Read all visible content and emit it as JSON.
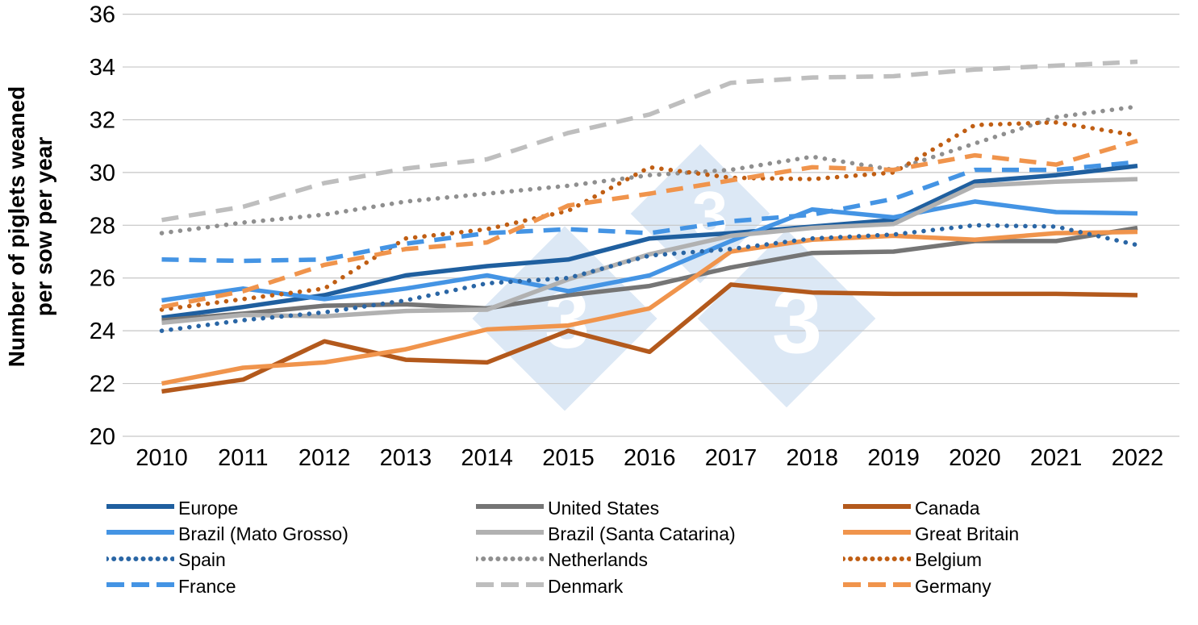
{
  "y_axis": {
    "title_line1": "Number of piglets weaned",
    "title_line2": "per sow per year",
    "tick_labels": [
      "36",
      "34",
      "32",
      "30",
      "28",
      "26",
      "24",
      "22",
      "20"
    ]
  },
  "x_axis": {
    "tick_labels": [
      "2010",
      "2011",
      "2012",
      "2013",
      "2014",
      "2015",
      "2016",
      "2017",
      "2018",
      "2019",
      "2020",
      "2021",
      "2022"
    ]
  },
  "watermark": {
    "digit": "3",
    "diamond_color": "#DCE8F5",
    "digit_color": "#FFFFFF"
  },
  "chart_data": {
    "type": "line",
    "title": "",
    "xlabel": "",
    "ylabel": "Number of piglets weaned per sow per year",
    "ylim": [
      20,
      36
    ],
    "y_tick_step": 2,
    "grid": "horizontal",
    "gridline_color": "#C6C6C6",
    "legend_position": "bottom",
    "x": [
      2010,
      2011,
      2012,
      2013,
      2014,
      2015,
      2016,
      2017,
      2018,
      2019,
      2020,
      2021,
      2022
    ],
    "series": [
      {
        "name": "Europe",
        "color": "#1F5F9F",
        "style": "solid",
        "values": [
          24.5,
          24.9,
          25.35,
          26.1,
          26.45,
          26.7,
          27.5,
          27.7,
          27.95,
          28.2,
          29.65,
          29.9,
          30.25
        ]
      },
      {
        "name": "United States",
        "color": "#757575",
        "style": "solid",
        "values": [
          24.4,
          24.65,
          24.95,
          25.0,
          24.85,
          25.35,
          25.7,
          26.4,
          26.95,
          27.0,
          27.4,
          27.4,
          27.9
        ]
      },
      {
        "name": "Canada",
        "color": "#B3591C",
        "style": "solid",
        "values": [
          21.7,
          22.15,
          23.6,
          22.9,
          22.8,
          24.0,
          23.2,
          25.75,
          25.45,
          25.4,
          25.4,
          25.4,
          25.35
        ]
      },
      {
        "name": "Brazil (Mato Grosso)",
        "color": "#4494E4",
        "style": "solid",
        "values": [
          25.15,
          25.6,
          25.2,
          25.6,
          26.1,
          25.5,
          26.1,
          27.4,
          28.6,
          28.3,
          28.9,
          28.5,
          28.45
        ]
      },
      {
        "name": "Brazil (Santa Catarina)",
        "color": "#B1B1B1",
        "style": "solid",
        "values": [
          24.3,
          24.6,
          24.55,
          24.75,
          24.8,
          25.95,
          26.9,
          27.6,
          27.9,
          28.05,
          29.5,
          29.65,
          29.75
        ]
      },
      {
        "name": "Great Britain",
        "color": "#F0944C",
        "style": "solid",
        "values": [
          22.0,
          22.6,
          22.8,
          23.3,
          24.05,
          24.2,
          24.85,
          27.0,
          27.45,
          27.6,
          27.45,
          27.7,
          27.75
        ]
      },
      {
        "name": "Spain",
        "color": "#2A66A5",
        "style": "dotted",
        "values": [
          24.0,
          24.4,
          24.7,
          25.15,
          25.8,
          26.0,
          26.85,
          27.1,
          27.5,
          27.65,
          28.0,
          27.95,
          27.25
        ]
      },
      {
        "name": "Netherlands",
        "color": "#8F8F8F",
        "style": "dotted",
        "values": [
          27.7,
          28.1,
          28.4,
          28.9,
          29.2,
          29.5,
          29.9,
          30.1,
          30.6,
          30.1,
          31.1,
          32.1,
          32.5
        ]
      },
      {
        "name": "Belgium",
        "color": "#C05E13",
        "style": "dotted",
        "values": [
          24.8,
          25.2,
          25.6,
          27.5,
          27.85,
          28.55,
          30.2,
          29.8,
          29.75,
          30.0,
          31.8,
          31.9,
          31.4
        ]
      },
      {
        "name": "France",
        "color": "#4494E4",
        "style": "dashed",
        "values": [
          26.7,
          26.65,
          26.7,
          27.3,
          27.7,
          27.85,
          27.7,
          28.15,
          28.4,
          29.0,
          30.1,
          30.1,
          30.4
        ]
      },
      {
        "name": "Denmark",
        "color": "#BEBEBE",
        "style": "dashed",
        "values": [
          28.2,
          28.7,
          29.6,
          30.15,
          30.5,
          31.5,
          32.2,
          33.4,
          33.6,
          33.65,
          33.9,
          34.05,
          34.2
        ]
      },
      {
        "name": "Germany",
        "color": "#F0944C",
        "style": "dashed",
        "values": [
          24.9,
          25.5,
          26.5,
          27.1,
          27.35,
          28.75,
          29.2,
          29.7,
          30.2,
          30.1,
          30.65,
          30.3,
          31.2
        ]
      }
    ]
  },
  "legend": {
    "columns": [
      [
        "Europe",
        "Brazil (Mato Grosso)",
        "Spain",
        "France"
      ],
      [
        "United States",
        "Brazil (Santa Catarina)",
        "Netherlands",
        "Denmark"
      ],
      [
        "Canada",
        "Great Britain",
        "Belgium",
        "Germany"
      ]
    ]
  }
}
